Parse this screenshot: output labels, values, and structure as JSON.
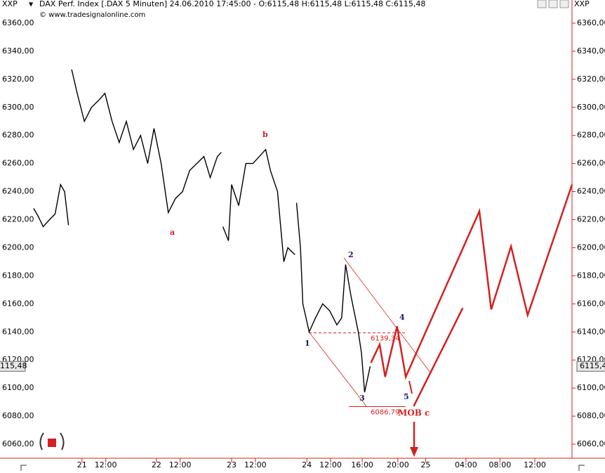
{
  "chart_data": {
    "type": "line",
    "symbol": "XXP",
    "title": "DAX Perf. Index [.DAX  5 Minuten] 24.06.2010 17:45:00 - O:6115,48 H:6115,48 L:6115,48 C:6115,48",
    "copyright": "© www.tradesignalonline.com",
    "xlim": [
      0,
      68
    ],
    "ylim": [
      6050,
      6376.5
    ],
    "yticks": [
      {
        "value": 6060,
        "label": "6060,00"
      },
      {
        "value": 6080,
        "label": "6080,00"
      },
      {
        "value": 6100,
        "label": "6100,00"
      },
      {
        "value": 6120,
        "label": "6120,00"
      },
      {
        "value": 6140,
        "label": "6140,00"
      },
      {
        "value": 6160,
        "label": "6160,00"
      },
      {
        "value": 6180,
        "label": "6180,00"
      },
      {
        "value": 6200,
        "label": "6200,00"
      },
      {
        "value": 6220,
        "label": "6220,00"
      },
      {
        "value": 6240,
        "label": "6240,00"
      },
      {
        "value": 6260,
        "label": "6260,00"
      },
      {
        "value": 6280,
        "label": "6280,00"
      },
      {
        "value": 6300,
        "label": "6300,00"
      },
      {
        "value": 6320,
        "label": "6320,00"
      },
      {
        "value": 6340,
        "label": "6340,00"
      },
      {
        "value": 6360,
        "label": "6360,00"
      }
    ],
    "xticks": [
      {
        "value": 6.1,
        "label": "21"
      },
      {
        "value": 9.1,
        "label": "12:00"
      },
      {
        "value": 15.5,
        "label": "22"
      },
      {
        "value": 18.5,
        "label": "12:00"
      },
      {
        "value": 25.0,
        "label": "23"
      },
      {
        "value": 28.0,
        "label": "12:00"
      },
      {
        "value": 34.5,
        "label": "24"
      },
      {
        "value": 37.5,
        "label": "12:00"
      },
      {
        "value": 41.5,
        "label": "16:00"
      },
      {
        "value": 46.0,
        "label": "20:00"
      },
      {
        "value": 49.5,
        "label": "25"
      },
      {
        "value": 54.6,
        "label": "04:00"
      },
      {
        "value": 58.9,
        "label": "08:00"
      },
      {
        "value": 63.3,
        "label": "12:00"
      }
    ],
    "series": [
      {
        "color": "#000000",
        "x": [
          0,
          0.6,
          1.2,
          2.0,
          2.7,
          3.4,
          3.9,
          4.4,
          null,
          4.8,
          5.5,
          6.4,
          7.3,
          8.2,
          9.0,
          9.9,
          10.8,
          11.7,
          12.6,
          13.5,
          14.4,
          15.2,
          16.1,
          17.0,
          17.9,
          18.8,
          19.7,
          20.6,
          21.5,
          22.3,
          23.2,
          23.7,
          null,
          23.9,
          24.6,
          25.0,
          25.9,
          26.8,
          27.7,
          28.5,
          29.3,
          29.9,
          30.8,
          31.2,
          31.6,
          32.1,
          33.0,
          null,
          33.2,
          33.7,
          34.0,
          34.8,
          35.6,
          36.5,
          37.4,
          38.3,
          38.9,
          39.4,
          40.1,
          41.0,
          41.4,
          41.8,
          42.3,
          42.5
        ],
        "values": [
          6228,
          6222,
          6215,
          6220,
          6224,
          6245,
          6240,
          6216,
          null,
          6327,
          6310,
          6290,
          6300,
          6305,
          6310,
          6290,
          6275,
          6290,
          6270,
          6280,
          6260,
          6285,
          6260,
          6225,
          6235,
          6240,
          6255,
          6260,
          6265,
          6250,
          6265,
          6268,
          null,
          6215,
          6205,
          6245,
          6230,
          6260,
          6260,
          6265,
          6270,
          6255,
          6240,
          6215,
          6190,
          6200,
          6195,
          null,
          6232,
          6200,
          6160,
          6140,
          6150,
          6160,
          6155,
          6145,
          6150,
          6188,
          6165,
          6140,
          6125,
          6097,
          6110,
          6115.48
        ]
      },
      {
        "color": "#d42020",
        "x": [
          42.6,
          43.7,
          44.4,
          45.9,
          47.0,
          56.3,
          57.8,
          60.3,
          62.4,
          68.0
        ],
        "values": [
          6118,
          6131,
          6108,
          6144,
          6108,
          6226,
          6156,
          6201,
          6152,
          6245
        ]
      },
      {
        "color": "#d42020",
        "x": [
          48.0,
          54.2
        ],
        "values": [
          6087,
          6157
        ]
      }
    ],
    "levels": [
      {
        "value": 6139.34,
        "label": "6139,34"
      },
      {
        "value": 6086.79,
        "label": "6086,79"
      }
    ],
    "last_value": {
      "value": 6115.48,
      "label": "6115,48"
    },
    "waves": {
      "a": "a",
      "b": "b",
      "w1": "1",
      "w2": "2",
      "w3": "3",
      "w4": "4",
      "w5": "5",
      "c": "MOB c"
    }
  }
}
